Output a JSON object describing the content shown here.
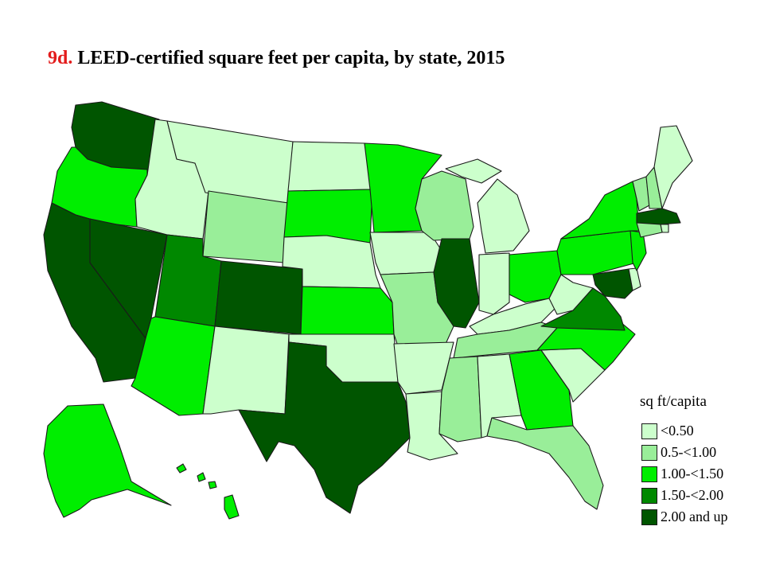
{
  "title": {
    "prefix": "9d.",
    "text": "LEED-certified square feet per capita, by state, 2015"
  },
  "legend": {
    "title": "sq ft/capita",
    "items": [
      {
        "label": "<0.50",
        "color": "#ccffcc"
      },
      {
        "label": "0.5-<1.00",
        "color": "#99ee99"
      },
      {
        "label": "1.00-<1.50",
        "color": "#00ee00"
      },
      {
        "label": "1.50-<2.00",
        "color": "#008800"
      },
      {
        "label": "2.00 and up",
        "color": "#005500"
      }
    ]
  },
  "states": [
    {
      "id": "WA",
      "cls": 4
    },
    {
      "id": "OR",
      "cls": 2
    },
    {
      "id": "CA",
      "cls": 4
    },
    {
      "id": "NV",
      "cls": 4
    },
    {
      "id": "ID",
      "cls": 0
    },
    {
      "id": "MT",
      "cls": 0
    },
    {
      "id": "WY",
      "cls": 1
    },
    {
      "id": "UT",
      "cls": 3
    },
    {
      "id": "AZ",
      "cls": 2
    },
    {
      "id": "CO",
      "cls": 4
    },
    {
      "id": "NM",
      "cls": 0
    },
    {
      "id": "ND",
      "cls": 0
    },
    {
      "id": "SD",
      "cls": 2
    },
    {
      "id": "NE",
      "cls": 0
    },
    {
      "id": "KS",
      "cls": 2
    },
    {
      "id": "OK",
      "cls": 0
    },
    {
      "id": "TX",
      "cls": 4
    },
    {
      "id": "MN",
      "cls": 2
    },
    {
      "id": "IA",
      "cls": 0
    },
    {
      "id": "MO",
      "cls": 1
    },
    {
      "id": "AR",
      "cls": 0
    },
    {
      "id": "LA",
      "cls": 0
    },
    {
      "id": "WI",
      "cls": 1
    },
    {
      "id": "IL",
      "cls": 4
    },
    {
      "id": "MI",
      "cls": 0
    },
    {
      "id": "IN",
      "cls": 0
    },
    {
      "id": "OH",
      "cls": 2
    },
    {
      "id": "KY",
      "cls": 0
    },
    {
      "id": "TN",
      "cls": 1
    },
    {
      "id": "MS",
      "cls": 1
    },
    {
      "id": "AL",
      "cls": 0
    },
    {
      "id": "GA",
      "cls": 2
    },
    {
      "id": "FL",
      "cls": 1
    },
    {
      "id": "SC",
      "cls": 0
    },
    {
      "id": "NC",
      "cls": 2
    },
    {
      "id": "VA",
      "cls": 3
    },
    {
      "id": "WV",
      "cls": 0
    },
    {
      "id": "PA",
      "cls": 2
    },
    {
      "id": "NY",
      "cls": 2
    },
    {
      "id": "VT",
      "cls": 1
    },
    {
      "id": "NH",
      "cls": 1
    },
    {
      "id": "ME",
      "cls": 0
    },
    {
      "id": "MA",
      "cls": 4
    },
    {
      "id": "RI",
      "cls": 0
    },
    {
      "id": "CT",
      "cls": 1
    },
    {
      "id": "NJ",
      "cls": 2
    },
    {
      "id": "DE",
      "cls": 0
    },
    {
      "id": "MD",
      "cls": 4
    },
    {
      "id": "DC",
      "cls": 4
    },
    {
      "id": "AK",
      "cls": 2
    },
    {
      "id": "HI",
      "cls": 2
    }
  ]
}
